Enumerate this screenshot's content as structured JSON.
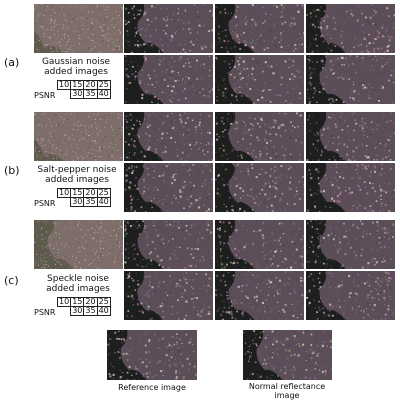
{
  "rows": [
    {
      "letter": "(a)",
      "caption_line1": "Gaussian noise",
      "caption_line2": "added images",
      "sigma_values": [
        "10",
        "15",
        "20",
        "25"
      ],
      "psnr_label": "PSNR",
      "psnr_values": [
        "30",
        "35",
        "40"
      ]
    },
    {
      "letter": "(b)",
      "caption_line1": "Salt-pepper noise",
      "caption_line2": "added images",
      "sigma_values": [
        "10",
        "15",
        "20",
        "25"
      ],
      "psnr_label": "PSNR",
      "psnr_values": [
        "30",
        "35",
        "40"
      ]
    },
    {
      "letter": "(c)",
      "caption_line1": "Speckle noise",
      "caption_line2": "added images",
      "sigma_values": [
        "10",
        "15",
        "20",
        "25"
      ],
      "psnr_label": "PSNR",
      "psnr_values": [
        "30",
        "35",
        "40"
      ]
    }
  ],
  "bottom": {
    "reference_caption": "Reference image",
    "normal_caption_line1": "Normal reflectance",
    "normal_caption_line2": "image"
  }
}
